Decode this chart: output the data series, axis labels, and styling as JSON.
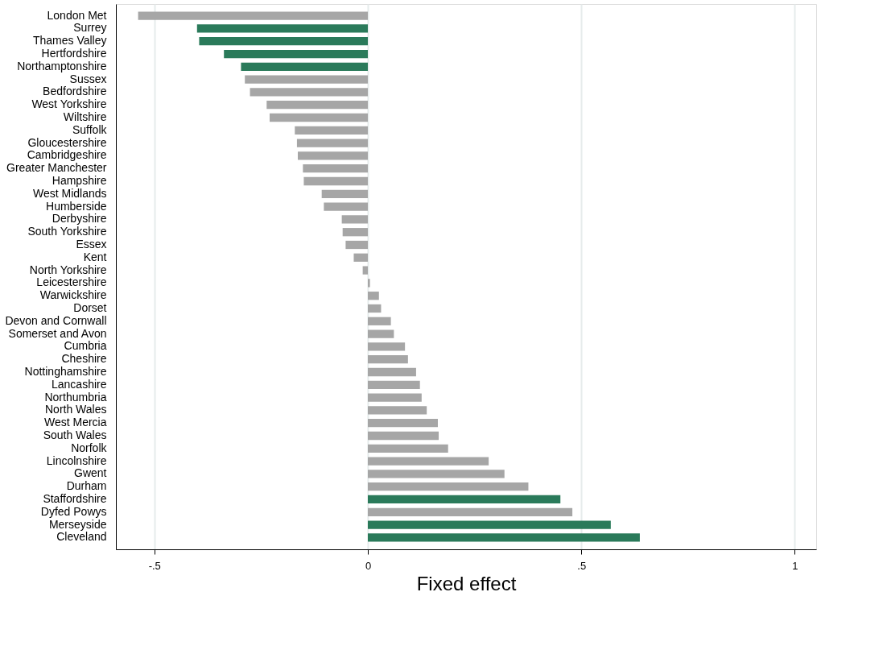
{
  "chart_data": {
    "type": "bar",
    "orientation": "horizontal",
    "xlabel": "Fixed effect",
    "categories": [
      "London Met",
      "Surrey",
      "Thames Valley",
      "Hertfordshire",
      "Northamptonshire",
      "Sussex",
      "Bedfordshire",
      "West Yorkshire",
      "Wiltshire",
      "Suffolk",
      "Gloucestershire",
      "Cambridgeshire",
      "Greater Manchester",
      "Hampshire",
      "West Midlands",
      "Humberside",
      "Derbyshire",
      "South Yorkshire",
      "Essex",
      "Kent",
      "North Yorkshire",
      "Leicestershire",
      "Warwickshire",
      "Dorset",
      "Devon and Cornwall",
      "Somerset and Avon",
      "Cumbria",
      "Cheshire",
      "Nottinghamshire",
      "Lancashire",
      "Northumbria",
      "North Wales",
      "West Mercia",
      "South Wales",
      "Norfolk",
      "Lincolnshire",
      "Gwent",
      "Durham",
      "Staffordshire",
      "Dyfed Powys",
      "Merseyside",
      "Cleveland"
    ],
    "values": [
      -0.538,
      -0.4,
      -0.395,
      -0.337,
      -0.297,
      -0.288,
      -0.276,
      -0.237,
      -0.23,
      -0.171,
      -0.166,
      -0.164,
      -0.152,
      -0.15,
      -0.108,
      -0.103,
      -0.061,
      -0.059,
      -0.052,
      -0.033,
      -0.012,
      0.005,
      0.026,
      0.031,
      0.054,
      0.061,
      0.087,
      0.094,
      0.113,
      0.122,
      0.126,
      0.138,
      0.164,
      0.166,
      0.188,
      0.283,
      0.32,
      0.376,
      0.451,
      0.479,
      0.569,
      0.637
    ],
    "colors": [
      "#a6a6a6",
      "#2a7a5a",
      "#2a7a5a",
      "#2a7a5a",
      "#2a7a5a",
      "#a6a6a6",
      "#a6a6a6",
      "#a6a6a6",
      "#a6a6a6",
      "#a6a6a6",
      "#a6a6a6",
      "#a6a6a6",
      "#a6a6a6",
      "#a6a6a6",
      "#a6a6a6",
      "#a6a6a6",
      "#a6a6a6",
      "#a6a6a6",
      "#a6a6a6",
      "#a6a6a6",
      "#a6a6a6",
      "#a6a6a6",
      "#a6a6a6",
      "#a6a6a6",
      "#a6a6a6",
      "#a6a6a6",
      "#a6a6a6",
      "#a6a6a6",
      "#a6a6a6",
      "#a6a6a6",
      "#a6a6a6",
      "#a6a6a6",
      "#a6a6a6",
      "#a6a6a6",
      "#a6a6a6",
      "#a6a6a6",
      "#a6a6a6",
      "#a6a6a6",
      "#2a7a5a",
      "#a6a6a6",
      "#2a7a5a",
      "#2a7a5a"
    ],
    "xlim": [
      -0.59,
      1.05
    ],
    "xticks": [
      {
        "value": -0.5,
        "label": "-.5"
      },
      0,
      {
        "value": 0.5,
        "label": ".5"
      },
      1
    ],
    "grid": "x"
  }
}
